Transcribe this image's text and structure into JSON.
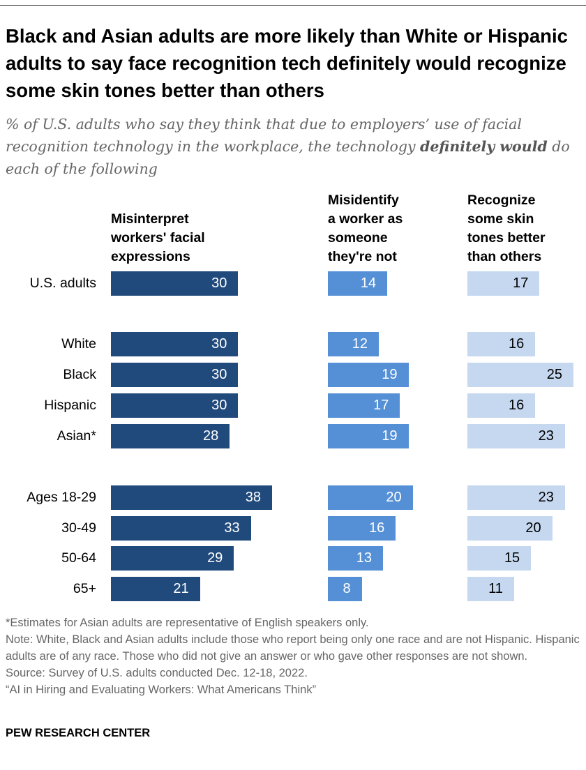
{
  "title": "Black and Asian adults are more likely than White or Hispanic adults to say face recognition tech definitely would recognize some skin tones better than others",
  "subtitle_pre": "% of U.S. adults who say they think that due to employers’ use of facial recognition technology in the workplace, the technology ",
  "subtitle_bold": "definitely would",
  "subtitle_post": " do each of the following",
  "chart_data": {
    "type": "bar",
    "orientation": "horizontal",
    "categories": [
      "U.S. adults",
      "White",
      "Black",
      "Hispanic",
      "Asian*",
      "Ages 18-29",
      "30-49",
      "50-64",
      "65+"
    ],
    "series": [
      {
        "name": "Misinterpret workers' facial expressions",
        "color": "#214a7c",
        "label_color": "#ffffff",
        "values": [
          30,
          30,
          30,
          30,
          28,
          38,
          33,
          29,
          21
        ]
      },
      {
        "name": "Misidentify a worker as someone they're not",
        "color": "#5590d6",
        "label_color": "#ffffff",
        "values": [
          14,
          12,
          19,
          17,
          19,
          20,
          16,
          13,
          8
        ]
      },
      {
        "name": "Recognize some skin tones better than others",
        "color": "#c5d8f0",
        "label_color": "#000000",
        "values": [
          17,
          16,
          25,
          16,
          23,
          23,
          20,
          15,
          11
        ]
      }
    ],
    "column_headers": [
      [
        "Misinterpret",
        "workers' facial",
        "expressions"
      ],
      [
        "Misidentify",
        "a worker as",
        "someone",
        "they're not"
      ],
      [
        "Recognize",
        "some skin",
        "tones better",
        "than others"
      ]
    ]
  },
  "notes": [
    "*Estimates for Asian adults are representative of English speakers only.",
    "Note: White, Black and Asian adults include those who report being only one race and are not Hispanic. Hispanic adults are of any race. Those who did not give an answer or who gave other responses are not shown.",
    "Source: Survey of U.S. adults conducted Dec. 12-18, 2022.",
    "“AI in Hiring and Evaluating Workers: What Americans Think”"
  ],
  "logo": "PEW RESEARCH CENTER"
}
